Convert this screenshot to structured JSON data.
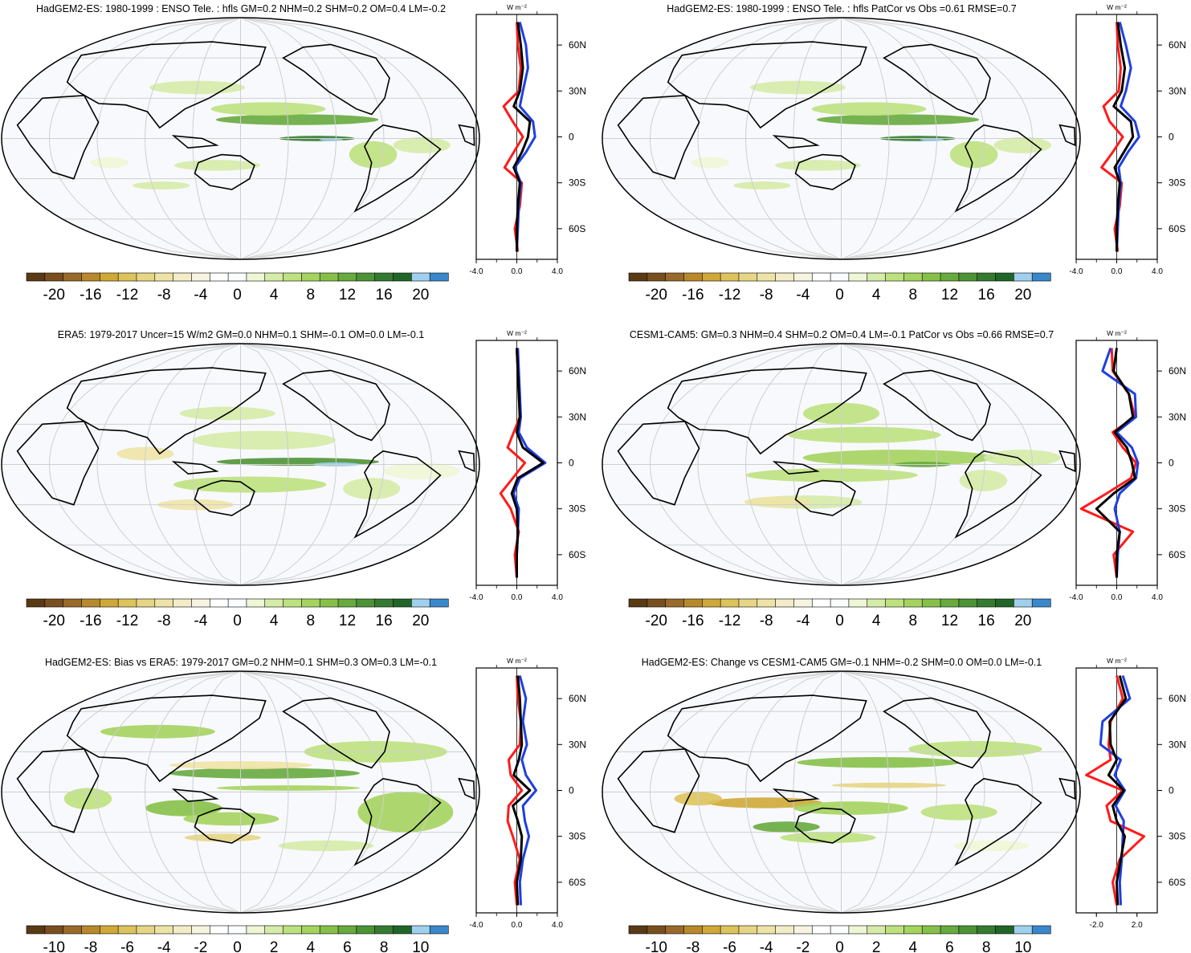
{
  "panels": [
    {
      "title": "HadGEM2-ES: 1980-1999 : ENSO Tele. : hfls GM=0.2 NHM=0.2 SHM=0.2 OM=0.4 LM=-0.2",
      "colorbar_labels": [
        "-20",
        "-16",
        "-12",
        "-8",
        "-4",
        "0",
        "4",
        "8",
        "12",
        "16",
        "20"
      ],
      "profile_ticks": [
        "-4.0",
        "0.0",
        "4.0"
      ],
      "profile_unit": "W m⁻²",
      "lat_labels": [
        "60N",
        "30N",
        "0",
        "30S",
        "60S"
      ]
    },
    {
      "title": "HadGEM2-ES: 1980-1999 : ENSO Tele. : hfls PatCor vs Obs =0.61 RMSE=0.7",
      "colorbar_labels": [
        "-20",
        "-16",
        "-12",
        "-8",
        "-4",
        "0",
        "4",
        "8",
        "12",
        "16",
        "20"
      ],
      "profile_ticks": [
        "-4.0",
        "0.0",
        "4.0"
      ],
      "profile_unit": "W m⁻²",
      "lat_labels": [
        "60N",
        "30N",
        "0",
        "30S",
        "60S"
      ]
    },
    {
      "title": "ERA5: 1979-2017 Uncer=15 W/m2 GM=0.0 NHM=0.1 SHM=-0.1 OM=0.0 LM=-0.1",
      "colorbar_labels": [
        "-20",
        "-16",
        "-12",
        "-8",
        "-4",
        "0",
        "4",
        "8",
        "12",
        "16",
        "20"
      ],
      "profile_ticks": [
        "-4.0",
        "0.0",
        "4.0"
      ],
      "profile_unit": "W m⁻²",
      "lat_labels": [
        "60N",
        "30N",
        "0",
        "30S",
        "60S"
      ]
    },
    {
      "title": "CESM1-CAM5: GM=0.3 NHM=0.4 SHM=0.2 OM=0.4 LM=-0.1 PatCor vs Obs =0.66 RMSE=0.7",
      "colorbar_labels": [
        "-20",
        "-16",
        "-12",
        "-8",
        "-4",
        "0",
        "4",
        "8",
        "12",
        "16",
        "20"
      ],
      "profile_ticks": [
        "-4.0",
        "0.0",
        "4.0"
      ],
      "profile_unit": "W m⁻²",
      "lat_labels": [
        "60N",
        "30N",
        "0",
        "30S",
        "60S"
      ]
    },
    {
      "title": "HadGEM2-ES: Bias vs ERA5: 1979-2017 GM=0.2 NHM=0.1 SHM=0.3 OM=0.3 LM=-0.1",
      "colorbar_labels": [
        "-10",
        "-8",
        "-6",
        "-4",
        "-2",
        "0",
        "2",
        "4",
        "6",
        "8",
        "10"
      ],
      "profile_ticks": [
        "-4.0",
        "0.0",
        "4.0"
      ],
      "profile_unit": "W m⁻²",
      "lat_labels": [
        "60N",
        "30N",
        "0",
        "30S",
        "60S"
      ]
    },
    {
      "title": "HadGEM2-ES: Change vs CESM1-CAM5 GM=-0.1 NHM=-0.2 SHM=0.0 OM=0.0 LM=-0.1",
      "colorbar_labels": [
        "-10",
        "-8",
        "-6",
        "-4",
        "-2",
        "0",
        "2",
        "4",
        "6",
        "8",
        "10"
      ],
      "profile_ticks": [
        "-2.0",
        "2.0"
      ],
      "profile_unit": "W m⁻²",
      "lat_labels": [
        "60N",
        "30N",
        "0",
        "30S",
        "60S"
      ]
    }
  ],
  "colorbar_colors": [
    "#5a3a14",
    "#7a4f1e",
    "#9a6a2a",
    "#b8892a",
    "#cfa838",
    "#dcc35a",
    "#e6d585",
    "#eee3a6",
    "#f3ecc8",
    "#f7f4e2",
    "#ffffff",
    "#fafcfe",
    "#eef6d6",
    "#d5eba8",
    "#bde17e",
    "#a4d35e",
    "#86c049",
    "#67aa3e",
    "#4c9336",
    "#347b31",
    "#1f6628",
    "#9fd0ee",
    "#3a88cc"
  ],
  "chart_data": [
    {
      "type": "heatmap",
      "title": "HadGEM2-ES: 1980-1999 : ENSO Tele. : hfls GM=0.2 NHM=0.2 SHM=0.2 OM=0.4 LM=-0.2",
      "colorbar_range": [
        -20,
        20
      ],
      "zonal_mean_profile": {
        "lat": [
          -75,
          -60,
          -45,
          -30,
          -20,
          -10,
          0,
          10,
          20,
          30,
          45,
          60,
          75
        ],
        "series_red": [
          0.1,
          -0.2,
          0.3,
          0.5,
          -1.2,
          -0.3,
          0.6,
          -0.4,
          -1.3,
          0.2,
          0.4,
          0.1,
          0.0
        ],
        "series_blue": [
          0.0,
          0.1,
          0.2,
          0.4,
          -0.2,
          0.9,
          1.8,
          1.6,
          0.3,
          0.6,
          1.1,
          0.9,
          0.3
        ],
        "series_black": [
          0.0,
          0.0,
          0.1,
          0.3,
          -0.3,
          0.5,
          1.1,
          1.3,
          -0.3,
          0.3,
          0.6,
          0.4,
          0.1
        ],
        "xlim": [
          -4,
          4
        ],
        "ylim": [
          -80,
          80
        ]
      }
    },
    {
      "type": "heatmap",
      "title": "HadGEM2-ES: 1980-1999 : ENSO Tele. : hfls PatCor vs Obs =0.61 RMSE=0.7",
      "colorbar_range": [
        -20,
        20
      ],
      "zonal_mean_profile": {
        "lat": [
          -75,
          -60,
          -45,
          -30,
          -20,
          -10,
          0,
          10,
          20,
          30,
          45,
          60,
          75
        ],
        "series_red": [
          0.1,
          -0.2,
          0.3,
          0.5,
          -1.5,
          -0.4,
          0.6,
          -0.7,
          -1.3,
          0.2,
          0.4,
          0.1,
          0.0
        ],
        "series_blue": [
          0.0,
          0.1,
          0.2,
          0.4,
          0.2,
          1.1,
          2.2,
          1.8,
          0.4,
          0.9,
          1.4,
          0.9,
          0.3
        ],
        "series_black": [
          0.0,
          0.0,
          0.1,
          0.3,
          -0.2,
          0.7,
          1.6,
          1.4,
          -0.3,
          0.5,
          0.8,
          0.4,
          0.1
        ],
        "xlim": [
          -4,
          4
        ],
        "ylim": [
          -80,
          80
        ]
      }
    },
    {
      "type": "heatmap",
      "title": "ERA5: 1979-2017 Uncer=15 W/m2 GM=0.0 NHM=0.1 SHM=-0.1 OM=0.0 LM=-0.1",
      "colorbar_range": [
        -20,
        20
      ],
      "zonal_mean_profile": {
        "lat": [
          -75,
          -60,
          -45,
          -30,
          -20,
          -10,
          0,
          10,
          20,
          30,
          45,
          60,
          75
        ],
        "series_red": [
          0.0,
          -0.2,
          0.2,
          -0.6,
          -1.6,
          -0.4,
          0.8,
          -0.9,
          -0.3,
          0.3,
          0.2,
          0.1,
          0.0
        ],
        "series_blue": [
          0.0,
          0.0,
          0.1,
          0.2,
          -0.3,
          0.3,
          2.8,
          1.0,
          0.2,
          0.4,
          0.3,
          0.2,
          0.1
        ],
        "series_black": [
          0.0,
          0.0,
          0.1,
          0.0,
          -0.5,
          0.1,
          2.6,
          0.6,
          0.0,
          0.3,
          0.2,
          0.1,
          0.0
        ],
        "xlim": [
          -4,
          4
        ],
        "ylim": [
          -80,
          80
        ]
      }
    },
    {
      "type": "heatmap",
      "title": "CESM1-CAM5: GM=0.3 NHM=0.4 SHM=0.2 OM=0.4 LM=-0.1 PatCor vs Obs =0.66 RMSE=0.7",
      "colorbar_range": [
        -20,
        20
      ],
      "zonal_mean_profile": {
        "lat": [
          -75,
          -60,
          -45,
          -30,
          -20,
          -10,
          0,
          10,
          20,
          30,
          45,
          60,
          75
        ],
        "series_red": [
          0.0,
          -0.3,
          1.6,
          -3.5,
          -1.0,
          1.4,
          1.9,
          0.6,
          -0.4,
          1.8,
          1.2,
          -0.4,
          -0.5
        ],
        "series_blue": [
          0.0,
          0.1,
          0.3,
          -0.2,
          0.3,
          1.9,
          2.1,
          1.5,
          0.0,
          1.9,
          1.8,
          -1.4,
          -0.6
        ],
        "series_black": [
          0.0,
          0.0,
          0.3,
          -2.0,
          -0.3,
          1.8,
          1.5,
          1.0,
          -0.2,
          1.6,
          1.2,
          -0.3,
          0.0
        ],
        "xlim": [
          -4,
          4
        ],
        "ylim": [
          -80,
          80
        ]
      }
    },
    {
      "type": "heatmap",
      "title": "HadGEM2-ES: Bias vs ERA5: 1979-2017 GM=0.2 NHM=0.1 SHM=0.3 OM=0.3 LM=-0.1",
      "colorbar_range": [
        -10,
        10
      ],
      "zonal_mean_profile": {
        "lat": [
          -75,
          -60,
          -45,
          -30,
          -20,
          -10,
          0,
          10,
          20,
          30,
          45,
          60,
          75
        ],
        "series_red": [
          0.0,
          -0.2,
          0.3,
          -0.4,
          -0.9,
          -0.8,
          0.5,
          -0.6,
          -0.8,
          0.3,
          0.4,
          0.1,
          0.0
        ],
        "series_blue": [
          0.4,
          0.3,
          0.6,
          1.2,
          0.8,
          0.6,
          1.9,
          0.9,
          0.5,
          1.0,
          0.6,
          0.9,
          0.3
        ],
        "series_black": [
          0.1,
          0.0,
          0.4,
          0.5,
          0.1,
          -0.4,
          1.3,
          -0.3,
          0.2,
          0.5,
          0.4,
          0.3,
          0.1
        ],
        "xlim": [
          -4,
          4
        ],
        "ylim": [
          -80,
          80
        ]
      }
    },
    {
      "type": "heatmap",
      "title": "HadGEM2-ES: Change vs CESM1-CAM5 GM=-0.1 NHM=-0.2 SHM=0.0 OM=0.0 LM=-0.1",
      "colorbar_range": [
        -10,
        10
      ],
      "zonal_mean_profile": {
        "lat": [
          -75,
          -60,
          -45,
          -30,
          -20,
          -10,
          0,
          10,
          20,
          30,
          45,
          60,
          75
        ],
        "series_red": [
          0.0,
          -0.4,
          0.3,
          2.7,
          -0.6,
          -1.0,
          0.6,
          -3.0,
          -0.6,
          -0.8,
          -0.6,
          0.6,
          0.0
        ],
        "series_blue": [
          0.4,
          0.3,
          0.5,
          0.6,
          0.7,
          -0.1,
          0.8,
          -0.2,
          0.4,
          -1.6,
          -1.4,
          1.3,
          0.6
        ],
        "series_black": [
          0.1,
          0.0,
          0.4,
          0.8,
          0.0,
          -0.4,
          0.7,
          -0.8,
          0.0,
          -0.6,
          -0.7,
          0.9,
          0.3
        ],
        "xlim": [
          -4,
          4
        ],
        "ylim": [
          -80,
          80
        ]
      }
    }
  ]
}
